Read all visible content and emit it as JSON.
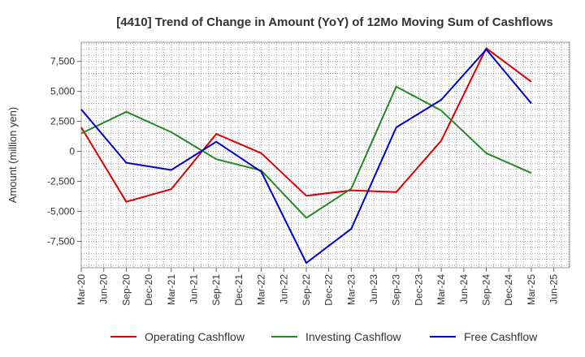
{
  "chart_data": {
    "type": "line",
    "title": "[4410]  Trend of Change in Amount (YoY) of 12Mo Moving Sum of Cashflows",
    "xlabel": "",
    "ylabel": "Amount (million yen)",
    "ylim": [
      -9700,
      9100
    ],
    "y_ticks": [
      7500,
      5000,
      2500,
      0,
      -2500,
      -5000,
      -7500
    ],
    "y_tick_labels": [
      "7,500",
      "5,000",
      "2,500",
      "0",
      "-2,500",
      "-5,000",
      "-7,500"
    ],
    "x_ticks": [
      "Mar-20",
      "Jun-20",
      "Sep-20",
      "Dec-20",
      "Mar-21",
      "Jun-21",
      "Sep-21",
      "Dec-21",
      "Mar-22",
      "Jun-22",
      "Sep-22",
      "Dec-22",
      "Mar-23",
      "Jun-23",
      "Sep-23",
      "Dec-23",
      "Mar-24",
      "Jun-24",
      "Sep-24",
      "Dec-24",
      "Mar-25",
      "Jun-25"
    ],
    "x": [
      "Mar-20",
      "Sep-20",
      "Mar-21",
      "Sep-21",
      "Mar-22",
      "Sep-22",
      "Mar-23",
      "Sep-23",
      "Mar-24",
      "Sep-24",
      "Mar-25"
    ],
    "series": [
      {
        "name": "Operating Cashflow",
        "color": "#dd0000",
        "values": [
          2000,
          -4200,
          -3150,
          1450,
          -150,
          -3700,
          -3250,
          -3400,
          900,
          8600,
          5800
        ]
      },
      {
        "name": "Investing Cashflow",
        "color": "#228822",
        "values": [
          1500,
          3300,
          1600,
          -650,
          -1600,
          -5550,
          -3100,
          5400,
          3400,
          -150,
          -1800
        ]
      },
      {
        "name": "Free Cashflow",
        "color": "#0000cc",
        "values": [
          3500,
          -950,
          -1550,
          800,
          -1700,
          -9300,
          -6450,
          2000,
          4300,
          8500,
          4000
        ]
      }
    ],
    "grid": true,
    "legend_position": "bottom"
  }
}
